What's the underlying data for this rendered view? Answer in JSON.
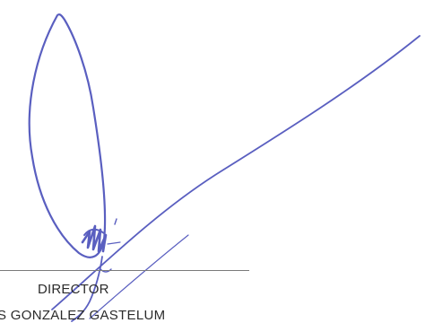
{
  "signature_block": {
    "title": "DIRECTOR",
    "name": "S GONZALEZ GASTELUM"
  },
  "colors": {
    "ink": "#5a5fc0",
    "text": "#2b2b2b",
    "rule": "#7a7a7a"
  }
}
